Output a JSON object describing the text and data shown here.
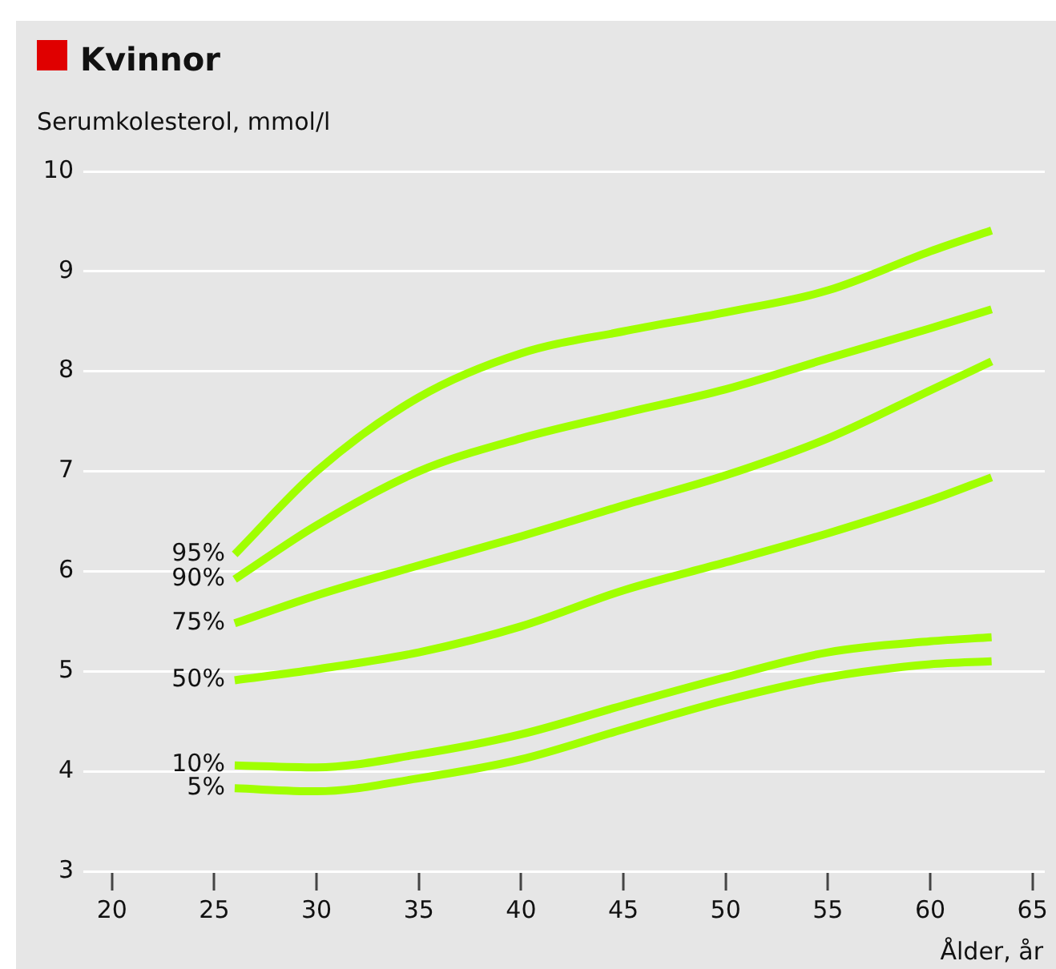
{
  "chart_data": {
    "type": "line",
    "title": "Kvinnor",
    "ylabel": "Serumkolesterol, mmol/l",
    "xlabel": "Ålder, år",
    "x": [
      26,
      30,
      35,
      40,
      45,
      50,
      55,
      60,
      63
    ],
    "series": [
      {
        "name": "95%",
        "color": "#a0ff00",
        "values": [
          6.17,
          7.0,
          7.74,
          8.18,
          8.4,
          8.59,
          8.81,
          9.2,
          9.41
        ]
      },
      {
        "name": "90%",
        "color": "#a0ff00",
        "values": [
          5.92,
          6.46,
          7.0,
          7.33,
          7.58,
          7.82,
          8.13,
          8.43,
          8.62
        ]
      },
      {
        "name": "75%",
        "color": "#a0ff00",
        "values": [
          5.48,
          5.76,
          6.06,
          6.35,
          6.66,
          6.96,
          7.33,
          7.81,
          8.1
        ]
      },
      {
        "name": "50%",
        "color": "#a0ff00",
        "values": [
          4.91,
          5.02,
          5.19,
          5.45,
          5.81,
          6.09,
          6.38,
          6.71,
          6.94
        ]
      },
      {
        "name": "10%",
        "color": "#a0ff00",
        "values": [
          4.06,
          4.04,
          4.17,
          4.37,
          4.66,
          4.94,
          5.19,
          5.3,
          5.34
        ]
      },
      {
        "name": "5%",
        "color": "#a0ff00",
        "values": [
          3.83,
          3.8,
          3.93,
          4.12,
          4.42,
          4.71,
          4.94,
          5.07,
          5.1
        ]
      }
    ],
    "xlim": [
      18.6,
      65.6
    ],
    "xticks": [
      20,
      25,
      30,
      35,
      40,
      45,
      50,
      55,
      60,
      65
    ],
    "ylim": [
      3,
      10
    ],
    "yticks": [
      3,
      4,
      5,
      6,
      7,
      8,
      9,
      10
    ],
    "grid": "y",
    "legend": false,
    "marker": "none",
    "line_style": "solid"
  }
}
